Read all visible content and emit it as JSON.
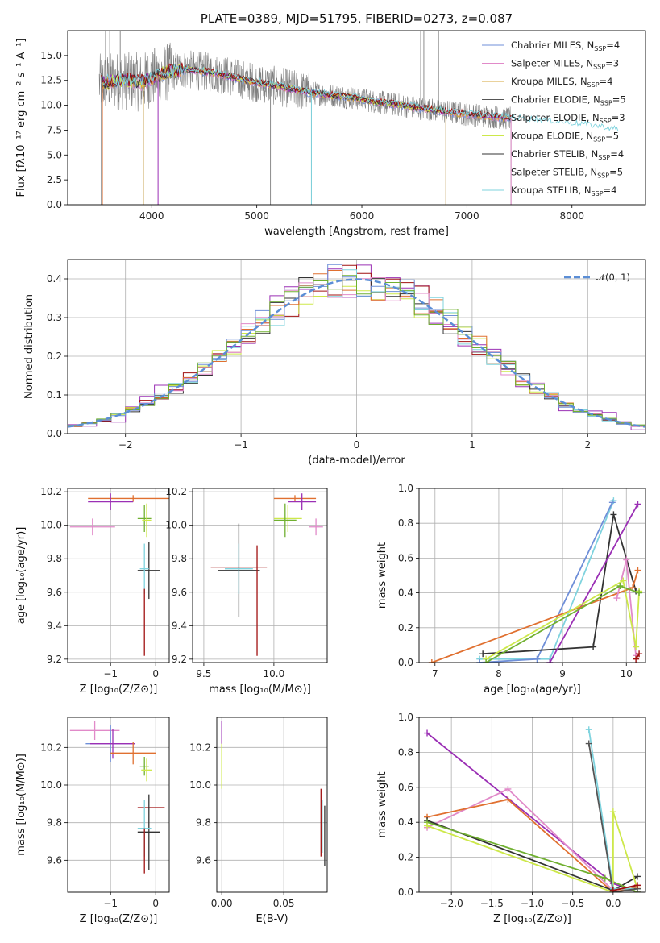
{
  "colors": {
    "chabrier_miles": "#6f8fd8",
    "salpeter_miles": "#e18ac9",
    "kroupa_miles": "#d4a43a",
    "chabrier_elodie": "#555555",
    "salpeter_elodie": "#9b30b5",
    "kroupa_elodie": "#cde84a",
    "chabrier_stelib": "#333333",
    "salpeter_stelib": "#a01010",
    "kroupa_stelib": "#7fd3de",
    "data": "#808080",
    "orange": "#e07030",
    "green": "#70b030",
    "dashed": "#5b8ed6"
  },
  "chart_data": [
    {
      "id": "spectrum",
      "type": "line",
      "title": "PLATE=0389, MJD=51795, FIBERID=0273, z=0.087",
      "xlabel": "wavelength [Angstrom, rest frame]",
      "ylabel": "Flux [fλ10⁻¹⁷ erg cm⁻² s⁻¹ A⁻¹]",
      "xlim": [
        3200,
        8700
      ],
      "ylim": [
        0,
        17.5
      ],
      "xticks": [
        "4000",
        "5000",
        "6000",
        "7000",
        "8000"
      ],
      "yticks": [
        "0.0",
        "2.5",
        "5.0",
        "7.5",
        "10.0",
        "12.5",
        "15.0"
      ],
      "legend_position": "top-right",
      "legend": [
        {
          "main": "Chabrier MILES, N",
          "sub": "SSP",
          "tail": "=4",
          "color_key": "chabrier_miles"
        },
        {
          "main": "Salpeter MILES, N",
          "sub": "SSP",
          "tail": "=3",
          "color_key": "salpeter_miles"
        },
        {
          "main": "Kroupa MILES, N",
          "sub": "SSP",
          "tail": "=4",
          "color_key": "kroupa_miles"
        },
        {
          "main": "Chabrier ELODIE, N",
          "sub": "SSP",
          "tail": "=5",
          "color_key": "chabrier_elodie"
        },
        {
          "main": "Salpeter ELODIE, N",
          "sub": "SSP",
          "tail": "=3",
          "color_key": "salpeter_elodie"
        },
        {
          "main": "Kroupa ELODIE, N",
          "sub": "SSP",
          "tail": "=5",
          "color_key": "kroupa_elodie"
        },
        {
          "main": "Chabrier STELIB, N",
          "sub": "SSP",
          "tail": "=4",
          "color_key": "chabrier_stelib"
        },
        {
          "main": "Salpeter STELIB, N",
          "sub": "SSP",
          "tail": "=5",
          "color_key": "salpeter_stelib"
        },
        {
          "main": "Kroupa STELIB, N",
          "sub": "SSP",
          "tail": "=4",
          "color_key": "kroupa_stelib"
        }
      ],
      "continuum": [
        [
          3500,
          12.2
        ],
        [
          3700,
          12.5
        ],
        [
          3900,
          12.3
        ],
        [
          4100,
          13.2
        ],
        [
          4300,
          13.6
        ],
        [
          4500,
          13.4
        ],
        [
          4700,
          13.0
        ],
        [
          4900,
          12.5
        ],
        [
          5100,
          12.1
        ],
        [
          5300,
          11.7
        ],
        [
          5500,
          11.3
        ],
        [
          5700,
          11.0
        ],
        [
          5900,
          10.8
        ],
        [
          6100,
          10.4
        ],
        [
          6300,
          10.1
        ],
        [
          6500,
          9.8
        ],
        [
          6700,
          9.5
        ],
        [
          6900,
          9.2
        ],
        [
          7100,
          9.0
        ],
        [
          7300,
          8.8
        ],
        [
          7500,
          8.6
        ],
        [
          7700,
          8.4
        ],
        [
          7900,
          8.2
        ],
        [
          8100,
          8.0
        ],
        [
          8300,
          7.7
        ],
        [
          8450,
          7.4
        ]
      ],
      "data_spikes": [
        [
          3520,
          0
        ],
        [
          3560,
          17.5
        ],
        [
          3600,
          17.5
        ],
        [
          3700,
          17.5
        ],
        [
          3920,
          0
        ],
        [
          5130,
          0
        ],
        [
          5520,
          0
        ],
        [
          6560,
          17.5
        ],
        [
          6590,
          17.5
        ],
        [
          6800,
          0
        ],
        [
          6730,
          17.5
        ],
        [
          7420,
          0
        ]
      ]
    },
    {
      "id": "residuals",
      "type": "histogram",
      "xlabel": "(data-model)/error",
      "ylabel": "Normed distribution",
      "xlim": [
        -2.5,
        2.5
      ],
      "ylim": [
        0,
        0.45
      ],
      "xticks": [
        "−2",
        "−1",
        "0",
        "1",
        "2"
      ],
      "yticks": [
        "0.0",
        "0.1",
        "0.2",
        "0.3",
        "0.4"
      ],
      "legend_position": "top-right",
      "legend_label": "𝒩(0, 1)",
      "bins": 40
    },
    {
      "id": "age-vs-Z",
      "type": "errorbar",
      "xlabel": "Z [log₁₀(Z/Z⊙)]",
      "ylabel": "age  [log₁₀(age/yr)]",
      "xlim": [
        -1.95,
        0.3
      ],
      "ylim": [
        9.18,
        10.22
      ],
      "xticks": [
        "−1",
        "0"
      ],
      "yticks": [
        "9.2",
        "9.4",
        "9.6",
        "9.8",
        "10.0",
        "10.2"
      ],
      "points": [
        {
          "x": -0.5,
          "y": 10.16,
          "xerr": 1.0,
          "yerr": 0.02,
          "color_key": "orange"
        },
        {
          "x": -1.0,
          "y": 10.14,
          "xerr": 0.5,
          "yerr": 0.05,
          "color_key": "salpeter_elodie"
        },
        {
          "x": -1.4,
          "y": 9.99,
          "xerr": 0.5,
          "yerr": 0.05,
          "color_key": "salpeter_miles"
        },
        {
          "x": -0.25,
          "y": 10.04,
          "xerr": 0.15,
          "yerr": 0.08,
          "color_key": "green"
        },
        {
          "x": -0.2,
          "y": 10.03,
          "xerr": 0.1,
          "yerr": 0.1,
          "color_key": "kroupa_elodie"
        },
        {
          "x": -0.15,
          "y": 9.73,
          "xerr": 0.25,
          "yerr": 0.17,
          "color_key": "chabrier_stelib"
        },
        {
          "x": -0.25,
          "y": 9.74,
          "xerr": 0.1,
          "yerr": 0.15,
          "color_key": "kroupa_stelib"
        },
        {
          "x": -0.25,
          "y": 9.42,
          "xerr": 0.0,
          "yerr": 0.2,
          "color_key": "salpeter_stelib"
        }
      ]
    },
    {
      "id": "age-vs-mass",
      "type": "errorbar",
      "xlabel": "mass [log₁₀(M/M⊙)]",
      "ylabel": "",
      "xlim": [
        9.42,
        10.38
      ],
      "ylim": [
        9.18,
        10.22
      ],
      "xticks": [
        "9.5",
        "10.0"
      ],
      "yticks": [
        "9.2",
        "9.4",
        "9.6",
        "9.8",
        "10.0",
        "10.2"
      ],
      "points": [
        {
          "x": 10.15,
          "y": 10.16,
          "xerr": 0.15,
          "yerr": 0.02,
          "color_key": "orange"
        },
        {
          "x": 10.2,
          "y": 10.14,
          "xerr": 0.1,
          "yerr": 0.05,
          "color_key": "salpeter_elodie"
        },
        {
          "x": 10.3,
          "y": 9.99,
          "xerr": 0.05,
          "yerr": 0.05,
          "color_key": "salpeter_miles"
        },
        {
          "x": 10.1,
          "y": 10.04,
          "xerr": 0.1,
          "yerr": 0.08,
          "color_key": "kroupa_elodie"
        },
        {
          "x": 10.08,
          "y": 10.03,
          "xerr": 0.08,
          "yerr": 0.1,
          "color_key": "green"
        },
        {
          "x": 9.75,
          "y": 9.73,
          "xerr": 0.15,
          "yerr": 0.28,
          "color_key": "chabrier_stelib"
        },
        {
          "x": 9.75,
          "y": 9.74,
          "xerr": 0.1,
          "yerr": 0.15,
          "color_key": "kroupa_stelib"
        },
        {
          "x": 9.75,
          "y": 9.75,
          "xerr": 0.2,
          "yerr": 0.0,
          "color_key": "salpeter_stelib"
        },
        {
          "x": 9.88,
          "y": 9.55,
          "xerr": 0.0,
          "yerr": 0.33,
          "color_key": "salpeter_stelib"
        }
      ]
    },
    {
      "id": "massweight-vs-age",
      "type": "line",
      "xlabel": "age  [log₁₀(age/yr)]",
      "ylabel": "mass weight",
      "xlim": [
        6.75,
        10.3
      ],
      "ylim": [
        0,
        1.0
      ],
      "xticks": [
        "7",
        "8",
        "9",
        "10"
      ],
      "yticks": [
        "0.0",
        "0.2",
        "0.4",
        "0.6",
        "0.8",
        "1.0"
      ],
      "series": [
        {
          "color_key": "kroupa_stelib",
          "x": [
            7.7,
            8.8,
            9.8
          ],
          "y": [
            0.02,
            0.02,
            0.93
          ]
        },
        {
          "color_key": "chabrier_miles",
          "x": [
            7.7,
            8.6,
            9.78
          ],
          "y": [
            0.0,
            0.02,
            0.92
          ]
        },
        {
          "color_key": "chabrier_stelib",
          "x": [
            7.75,
            9.48,
            9.8,
            10.15
          ],
          "y": [
            0.05,
            0.09,
            0.85,
            0.41
          ]
        },
        {
          "color_key": "salpeter_elodie",
          "x": [
            8.8,
            10.18
          ],
          "y": [
            0.0,
            0.91
          ]
        },
        {
          "color_key": "orange",
          "x": [
            6.95,
            10.1,
            10.18
          ],
          "y": [
            0.0,
            0.43,
            0.53
          ]
        },
        {
          "color_key": "salpeter_miles",
          "x": [
            9.85,
            10.0,
            10.15
          ],
          "y": [
            0.37,
            0.59,
            0.04
          ]
        },
        {
          "color_key": "kroupa_elodie",
          "x": [
            7.8,
            9.95,
            10.15,
            10.2
          ],
          "y": [
            0.02,
            0.47,
            0.09,
            0.41
          ]
        },
        {
          "color_key": "green",
          "x": [
            7.8,
            9.9,
            10.2
          ],
          "y": [
            0.0,
            0.44,
            0.4
          ]
        },
        {
          "color_key": "salpeter_stelib",
          "x": [
            10.15,
            10.2
          ],
          "y": [
            0.02,
            0.05
          ]
        }
      ]
    },
    {
      "id": "mass-vs-Z",
      "type": "errorbar",
      "xlabel": "Z [log₁₀(Z/Z⊙)]",
      "ylabel": "mass [log₁₀(M/M⊙)]",
      "xlim": [
        -1.95,
        0.3
      ],
      "ylim": [
        9.43,
        10.36
      ],
      "xticks": [
        "−1",
        "0"
      ],
      "yticks": [
        "9.6",
        "9.8",
        "10.0",
        "10.2"
      ],
      "points": [
        {
          "x": -1.35,
          "y": 10.29,
          "xerr": 0.55,
          "yerr": 0.05,
          "color_key": "salpeter_miles"
        },
        {
          "x": -1.0,
          "y": 10.22,
          "xerr": 0.55,
          "yerr": 0.1,
          "color_key": "chabrier_miles"
        },
        {
          "x": -0.95,
          "y": 10.22,
          "xerr": 0.5,
          "yerr": 0.08,
          "color_key": "salpeter_elodie"
        },
        {
          "x": -0.5,
          "y": 10.17,
          "xerr": 0.5,
          "yerr": 0.06,
          "color_key": "orange"
        },
        {
          "x": -0.25,
          "y": 10.1,
          "xerr": 0.1,
          "yerr": 0.05,
          "color_key": "green"
        },
        {
          "x": -0.2,
          "y": 10.08,
          "xerr": 0.12,
          "yerr": 0.06,
          "color_key": "kroupa_elodie"
        },
        {
          "x": -0.1,
          "y": 9.88,
          "xerr": 0.3,
          "yerr": 0.0,
          "color_key": "salpeter_stelib"
        },
        {
          "x": -0.15,
          "y": 9.75,
          "xerr": 0.25,
          "yerr": 0.2,
          "color_key": "chabrier_stelib"
        },
        {
          "x": -0.25,
          "y": 9.77,
          "xerr": 0.15,
          "yerr": 0.15,
          "color_key": "kroupa_stelib"
        },
        {
          "x": -0.25,
          "y": 9.65,
          "xerr": 0.0,
          "yerr": 0.12,
          "color_key": "salpeter_stelib"
        }
      ]
    },
    {
      "id": "mass-vs-EBV",
      "type": "errorbar",
      "xlabel": "E(B-V)",
      "ylabel": "",
      "xlim": [
        -0.004,
        0.085
      ],
      "ylim": [
        9.43,
        10.36
      ],
      "xticks": [
        "0.00",
        "0.05"
      ],
      "yticks": [
        "9.6",
        "9.8",
        "10.0",
        "10.2"
      ],
      "points": [
        {
          "x": 0.0,
          "y": 10.27,
          "xerr": 0.0,
          "yerr": 0.07,
          "color_key": "salpeter_elodie"
        },
        {
          "x": 0.0,
          "y": 10.1,
          "xerr": 0.0,
          "yerr": 0.12,
          "color_key": "kroupa_elodie"
        },
        {
          "x": 0.08,
          "y": 9.8,
          "xerr": 0.0,
          "yerr": 0.18,
          "color_key": "salpeter_stelib"
        },
        {
          "x": 0.081,
          "y": 9.78,
          "xerr": 0.0,
          "yerr": 0.14,
          "color_key": "kroupa_stelib"
        },
        {
          "x": 0.083,
          "y": 9.73,
          "xerr": 0.0,
          "yerr": 0.16,
          "color_key": "chabrier_stelib"
        }
      ]
    },
    {
      "id": "massweight-vs-Z",
      "type": "line",
      "xlabel": "Z [log₁₀(Z/Z⊙)]",
      "ylabel": "mass weight",
      "xlim": [
        -2.4,
        0.4
      ],
      "ylim": [
        0,
        1.0
      ],
      "xticks": [
        "−2.0",
        "−1.5",
        "−1.0",
        "−0.5",
        "0.0"
      ],
      "yticks": [
        "0.0",
        "0.2",
        "0.4",
        "0.6",
        "0.8",
        "1.0"
      ],
      "series": [
        {
          "color_key": "salpeter_elodie",
          "x": [
            -2.3,
            0.0,
            0.3
          ],
          "y": [
            0.91,
            0.05,
            0.0
          ]
        },
        {
          "color_key": "salpeter_miles",
          "x": [
            -2.3,
            -1.3,
            0.0,
            0.3
          ],
          "y": [
            0.37,
            0.59,
            0.01,
            0.04
          ]
        },
        {
          "color_key": "orange",
          "x": [
            -2.3,
            -1.3,
            0.0,
            0.3
          ],
          "y": [
            0.43,
            0.53,
            0.0,
            0.03
          ]
        },
        {
          "color_key": "chabrier_stelib",
          "x": [
            -2.3,
            0.0,
            0.3
          ],
          "y": [
            0.41,
            0.01,
            0.09
          ]
        },
        {
          "color_key": "green",
          "x": [
            -2.3,
            -0.1,
            0.3
          ],
          "y": [
            0.4,
            0.08,
            0.0
          ]
        },
        {
          "color_key": "kroupa_elodie",
          "x": [
            -2.3,
            0.0,
            0.0,
            0.3
          ],
          "y": [
            0.38,
            0.0,
            0.46,
            0.02
          ]
        },
        {
          "color_key": "kroupa_stelib",
          "x": [
            -0.3,
            0.0,
            0.3
          ],
          "y": [
            0.93,
            0.02,
            0.02
          ]
        },
        {
          "color_key": "chabrier_elodie",
          "x": [
            -0.3,
            0.0,
            0.3
          ],
          "y": [
            0.85,
            0.0,
            0.02
          ]
        },
        {
          "color_key": "salpeter_stelib",
          "x": [
            0.0,
            0.3
          ],
          "y": [
            0.01,
            0.04
          ]
        }
      ]
    }
  ]
}
